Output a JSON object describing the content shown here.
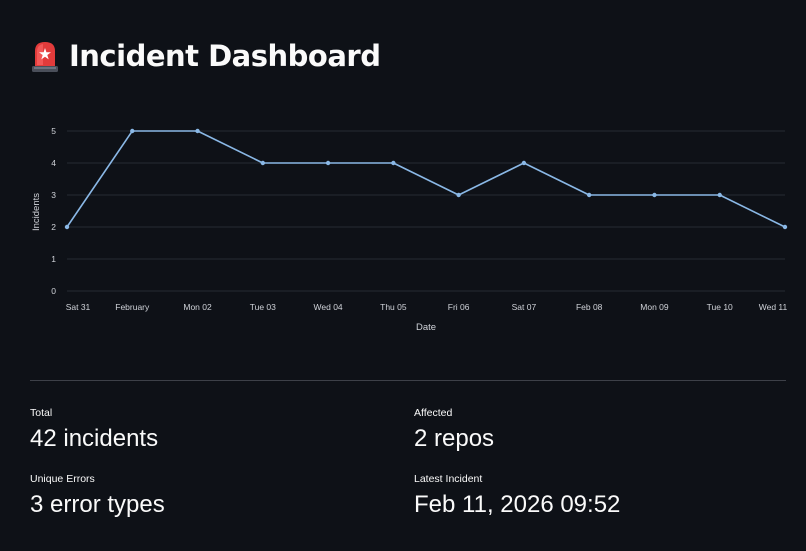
{
  "header": {
    "icon": "siren-icon",
    "title": "Incident Dashboard"
  },
  "chart_data": {
    "type": "line",
    "title": "",
    "xlabel": "Date",
    "ylabel": "Incidents",
    "categories": [
      "Sat 31",
      "February",
      "Mon 02",
      "Tue 03",
      "Wed 04",
      "Thu 05",
      "Fri 06",
      "Sat 07",
      "Feb 08",
      "Mon 09",
      "Tue 10",
      "Wed 11"
    ],
    "values": [
      2,
      5,
      5,
      4,
      4,
      4,
      3,
      4,
      3,
      3,
      3,
      2
    ],
    "ylim": [
      0,
      5
    ],
    "yticks": [
      0,
      1,
      2,
      3,
      4,
      5
    ],
    "grid": true,
    "line_color": "#8ab8e6",
    "grid_color": "#262a33"
  },
  "metrics": {
    "total": {
      "label": "Total",
      "value": "42 incidents"
    },
    "affected": {
      "label": "Affected",
      "value": "2 repos"
    },
    "errors": {
      "label": "Unique Errors",
      "value": "3 error types"
    },
    "latest": {
      "label": "Latest Incident",
      "value": "Feb 11, 2026 09:52"
    }
  },
  "colors": {
    "background": "#0e1117",
    "text": "#fafafa",
    "axis_text": "#d0d3d9",
    "divider": "#3d4048"
  }
}
